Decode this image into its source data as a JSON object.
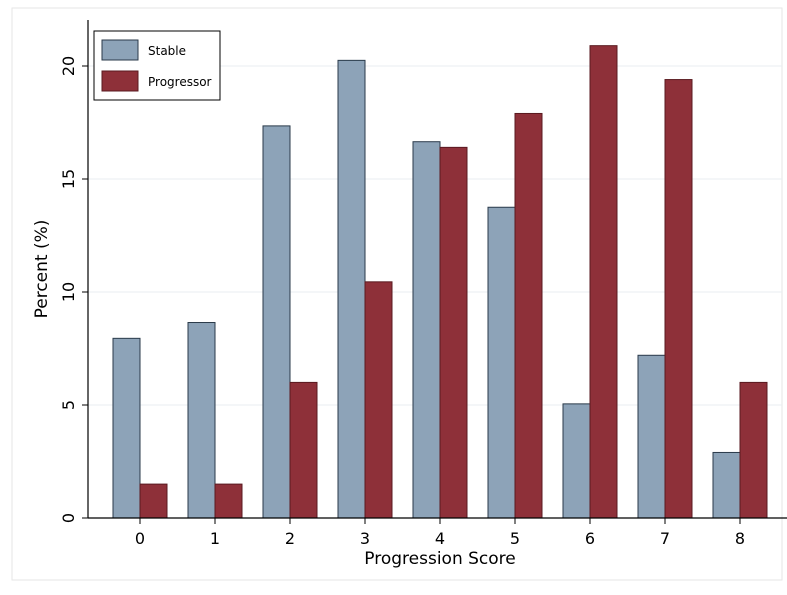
{
  "chart_data": {
    "type": "bar",
    "xlabel": "Progression Score",
    "ylabel": "Percent (%)",
    "categories": [
      "0",
      "1",
      "2",
      "3",
      "4",
      "5",
      "6",
      "7",
      "8"
    ],
    "ylim": [
      0,
      22
    ],
    "yticks": [
      0,
      5,
      10,
      15,
      20
    ],
    "grid": true,
    "legend_position": "top-left",
    "series": [
      {
        "name": "Stable",
        "color": "#8DA3B8",
        "values": [
          7.95,
          8.65,
          17.35,
          20.25,
          16.65,
          13.75,
          5.05,
          7.2,
          2.9
        ]
      },
      {
        "name": "Progressor",
        "color": "#8E3039",
        "values": [
          1.5,
          1.5,
          6.0,
          10.45,
          16.4,
          17.9,
          20.9,
          19.4,
          6.0
        ]
      }
    ]
  }
}
